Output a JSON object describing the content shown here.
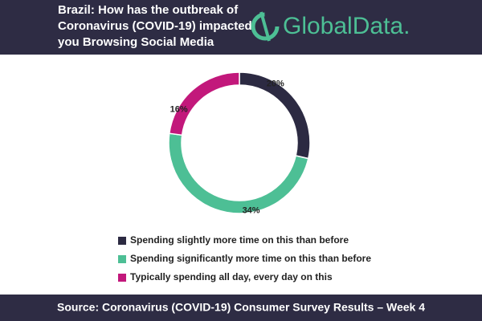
{
  "chart_data": {
    "type": "donut",
    "title_lines": [
      "Brazil: How has the outbreak of",
      "Coronavirus (COVID-19) impacted",
      "you Browsing Social Media"
    ],
    "logo": "GlobalData.",
    "categories": [
      "Spending slightly more time on this than before",
      "Spending significantly more time on this than before",
      "Typically spending all day, every day on this"
    ],
    "values": [
      20,
      34,
      16
    ],
    "value_labels": [
      "20%",
      "34%",
      "16%"
    ],
    "colors": [
      "#2c2a42",
      "#4dbf95",
      "#c2187b"
    ],
    "source": "Source: Coronavirus (COVID-19) Consumer Survey Results – Week 4"
  }
}
